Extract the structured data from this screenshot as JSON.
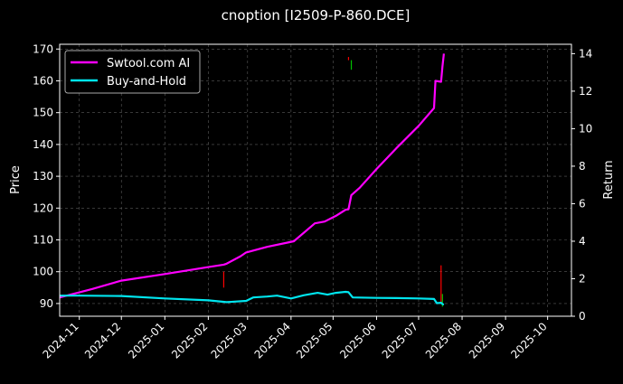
{
  "chart_data": {
    "type": "line",
    "title": "cnoption [I2509-P-860.DCE]",
    "ylabel": "Price",
    "y2label": "Return",
    "background": "#000000",
    "grid": true,
    "legend_placement": "top-left",
    "x_ticks": [
      "2024-11",
      "2024-12",
      "2025-01",
      "2025-02",
      "2025-03",
      "2025-04",
      "2025-05",
      "2025-06",
      "2025-07",
      "2025-08",
      "2025-09",
      "2025-10"
    ],
    "x_range": [
      "2024-10-18",
      "2025-10-18"
    ],
    "y_ticks": [
      90,
      100,
      110,
      120,
      130,
      140,
      150,
      160,
      170
    ],
    "y_range": [
      86,
      171.5
    ],
    "y2_ticks": [
      0,
      2,
      4,
      6,
      8,
      10,
      12,
      14
    ],
    "y2_range": [
      0,
      14.5
    ],
    "series": [
      {
        "name": "Swtool.com AI",
        "axis": "right",
        "color": "#ff00ff",
        "x": [
          "2024-10-18",
          "2024-11-10",
          "2024-12-01",
          "2025-01-01",
          "2025-02-01",
          "2025-02-12",
          "2025-02-14",
          "2025-02-24",
          "2025-02-28",
          "2025-03-15",
          "2025-03-31",
          "2025-04-03",
          "2025-04-18",
          "2025-04-25",
          "2025-05-03",
          "2025-05-10",
          "2025-05-12",
          "2025-05-14",
          "2025-05-20",
          "2025-06-01",
          "2025-06-15",
          "2025-07-01",
          "2025-07-12",
          "2025-07-13",
          "2025-07-17",
          "2025-07-18",
          "2025-07-19"
        ],
        "values": [
          1.0,
          1.45,
          1.9,
          2.25,
          2.62,
          2.75,
          2.8,
          3.2,
          3.4,
          3.7,
          3.95,
          4.0,
          4.95,
          5.05,
          5.35,
          5.68,
          5.7,
          6.45,
          6.85,
          7.85,
          8.95,
          10.15,
          11.1,
          12.55,
          12.5,
          13.3,
          14.0
        ]
      },
      {
        "name": "Buy-and-Hold",
        "axis": "right",
        "color": "#00e5ee",
        "x": [
          "2024-10-18",
          "2024-11-01",
          "2024-12-01",
          "2025-01-01",
          "2025-02-01",
          "2025-02-14",
          "2025-02-28",
          "2025-03-05",
          "2025-03-15",
          "2025-03-22",
          "2025-04-01",
          "2025-04-10",
          "2025-04-20",
          "2025-04-27",
          "2025-05-03",
          "2025-05-10",
          "2025-05-12",
          "2025-05-15",
          "2025-06-01",
          "2025-06-15",
          "2025-07-01",
          "2025-07-12",
          "2025-07-14",
          "2025-07-17",
          "2025-07-18",
          "2025-07-19"
        ],
        "values": [
          1.1,
          1.1,
          1.08,
          0.95,
          0.85,
          0.75,
          0.82,
          1.0,
          1.05,
          1.1,
          0.95,
          1.12,
          1.25,
          1.15,
          1.25,
          1.3,
          1.28,
          1.0,
          0.98,
          0.97,
          0.95,
          0.92,
          0.7,
          0.72,
          0.65,
          0.62
        ]
      }
    ],
    "markers": [
      {
        "kind": "sell",
        "color": "#ff0000",
        "x": "2025-02-12",
        "low": 95,
        "high": 100
      },
      {
        "kind": "sell",
        "color": "#ff0000",
        "x": "2025-05-12",
        "low": 166.5,
        "high": 167.5
      },
      {
        "kind": "buy",
        "color": "#00c000",
        "x": "2025-05-14",
        "low": 163.5,
        "high": 166.5
      },
      {
        "kind": "sell",
        "color": "#ff0000",
        "x": "2025-07-17",
        "low": 90,
        "high": 102
      },
      {
        "kind": "buy",
        "color": "#00c000",
        "x": "2025-07-18",
        "low": 89,
        "high": 93
      }
    ]
  }
}
